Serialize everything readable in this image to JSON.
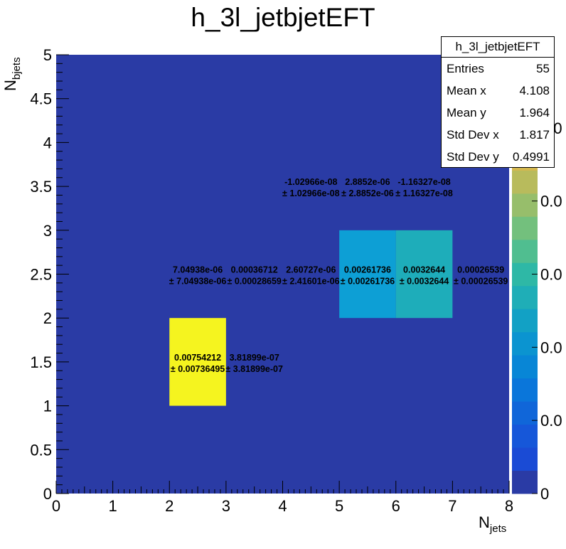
{
  "chart_data": {
    "type": "heatmap",
    "title": "h_3l_jetbjetEFT",
    "xlabel_main": "N",
    "xlabel_sub": "jets",
    "ylabel_main": "N",
    "ylabel_sub": "bjets",
    "xlim": [
      0,
      8
    ],
    "ylim": [
      0,
      5
    ],
    "xticks": [
      "0",
      "1",
      "2",
      "3",
      "4",
      "5",
      "6",
      "7",
      "8"
    ],
    "yticks": [
      "0",
      "0.5",
      "1",
      "1.5",
      "2",
      "2.5",
      "3",
      "3.5",
      "4",
      "4.5",
      "5"
    ],
    "background_color": "#2a3ba5",
    "cells": [
      {
        "x0": 2,
        "x1": 3,
        "y0": 1,
        "y1": 2,
        "value": "0.00754212",
        "error": "± 0.00736495",
        "color": "#f5f41f"
      },
      {
        "x0": 3,
        "x1": 4,
        "y0": 1,
        "y1": 2,
        "value": "3.81899e-07",
        "error": "± 3.81899e-07",
        "color": ""
      },
      {
        "x0": 2,
        "x1": 3,
        "y0": 2,
        "y1": 3,
        "value": "7.04938e-06",
        "error": "± 7.04938e-06",
        "color": ""
      },
      {
        "x0": 3,
        "x1": 4,
        "y0": 2,
        "y1": 3,
        "value": "0.00036712",
        "error": "± 0.00028659",
        "color": ""
      },
      {
        "x0": 4,
        "x1": 5,
        "y0": 2,
        "y1": 3,
        "value": "2.60727e-06",
        "error": "± 2.41601e-06",
        "color": ""
      },
      {
        "x0": 5,
        "x1": 6,
        "y0": 2,
        "y1": 3,
        "value": "0.00261736",
        "error": "± 0.00261736",
        "color": "#0d9fd5"
      },
      {
        "x0": 6,
        "x1": 7,
        "y0": 2,
        "y1": 3,
        "value": "0.0032644",
        "error": "± 0.0032644",
        "color": "#1eadba"
      },
      {
        "x0": 7,
        "x1": 8,
        "y0": 2,
        "y1": 3,
        "value": "0.00026539",
        "error": "± 0.00026539",
        "color": ""
      },
      {
        "x0": 4,
        "x1": 5,
        "y0": 3,
        "y1": 4,
        "value": "-1.02966e-08",
        "error": "± 1.02966e-08",
        "color": ""
      },
      {
        "x0": 5,
        "x1": 6,
        "y0": 3,
        "y1": 4,
        "value": "2.8852e-06",
        "error": "± 2.8852e-06",
        "color": ""
      },
      {
        "x0": 6,
        "x1": 7,
        "y0": 3,
        "y1": 4,
        "value": "-1.16327e-08",
        "error": "± 1.16327e-08",
        "color": ""
      }
    ],
    "palette": [
      "#2a3ba5",
      "#1a4bd5",
      "#1657d9",
      "#1066d9",
      "#0a76da",
      "#0886d6",
      "#0b94d0",
      "#12a1c5",
      "#1faeb7",
      "#2eb8a6",
      "#50be90",
      "#73c07d",
      "#97be6b",
      "#b8bb5c",
      "#d5b84e",
      "#e9c03c",
      "#f5d02a",
      "#f8e51f",
      "#f5f41f"
    ],
    "zaxis_labels": [
      "0",
      "0.0",
      "0.0",
      "0.0",
      "0.0",
      "0.0",
      "0"
    ],
    "stats": {
      "title": "h_3l_jetbjetEFT",
      "rows": [
        {
          "label": "Entries",
          "value": "55"
        },
        {
          "label": "Mean x",
          "value": "4.108"
        },
        {
          "label": "Mean y",
          "value": "1.964"
        },
        {
          "label": "Std Dev x",
          "value": "1.817"
        },
        {
          "label": "Std Dev y",
          "value": "0.4991"
        }
      ]
    }
  }
}
